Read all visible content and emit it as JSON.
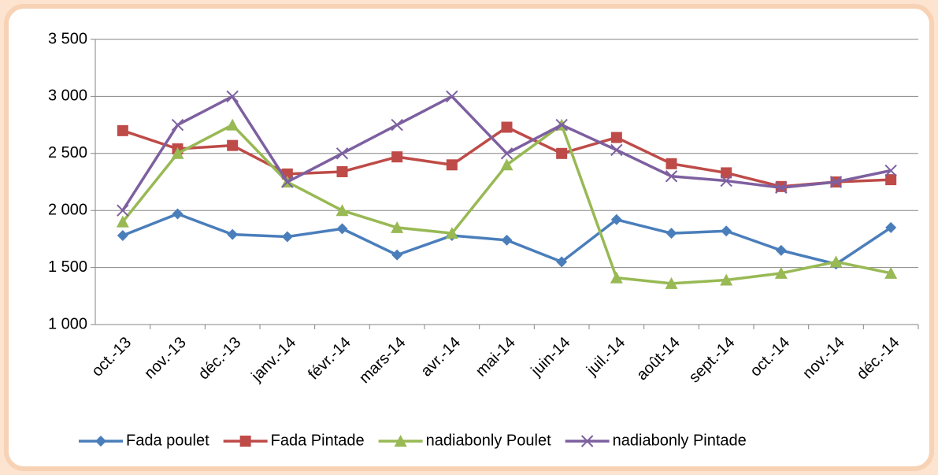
{
  "chart_data": {
    "type": "line",
    "categories": [
      "oct.-13",
      "nov.-13",
      "déc.-13",
      "janv.-14",
      "févr.-14",
      "mars-14",
      "avr.-14",
      "mai-14",
      "juin-14",
      "juil.-14",
      "août-14",
      "sept.-14",
      "oct.-14",
      "nov.-14",
      "déc.-14"
    ],
    "series": [
      {
        "name": "Fada poulet",
        "color": "#4a7ebb",
        "marker": "diamond",
        "values": [
          1780,
          1970,
          1790,
          1770,
          1840,
          1610,
          1780,
          1740,
          1550,
          1920,
          1800,
          1820,
          1650,
          1530,
          1850
        ]
      },
      {
        "name": "Fada Pintade",
        "color": "#be4b48",
        "marker": "square",
        "values": [
          2700,
          2540,
          2570,
          2320,
          2340,
          2470,
          2400,
          2730,
          2500,
          2640,
          2410,
          2330,
          2210,
          2250,
          2270
        ]
      },
      {
        "name": "nadiabonly Poulet",
        "color": "#98b954",
        "marker": "triangle",
        "values": [
          1900,
          2500,
          2750,
          2250,
          2000,
          1850,
          1800,
          2400,
          2750,
          1410,
          1360,
          1390,
          1450,
          1550,
          1450
        ]
      },
      {
        "name": "nadiabonly Pintade",
        "color": "#7d60a0",
        "marker": "x",
        "values": [
          2000,
          2750,
          3000,
          2250,
          2500,
          2750,
          3000,
          2500,
          2750,
          2530,
          2300,
          2260,
          2200,
          2250,
          2350
        ]
      }
    ],
    "ylim": [
      1000,
      3500
    ],
    "yticks": [
      {
        "value": 1000,
        "label": "1 000"
      },
      {
        "value": 1500,
        "label": "1 500"
      },
      {
        "value": 2000,
        "label": "2 000"
      },
      {
        "value": 2500,
        "label": "2 500"
      },
      {
        "value": 3000,
        "label": "3 000"
      },
      {
        "value": 3500,
        "label": "3 500"
      }
    ],
    "grid": true,
    "legend": "bottom"
  }
}
